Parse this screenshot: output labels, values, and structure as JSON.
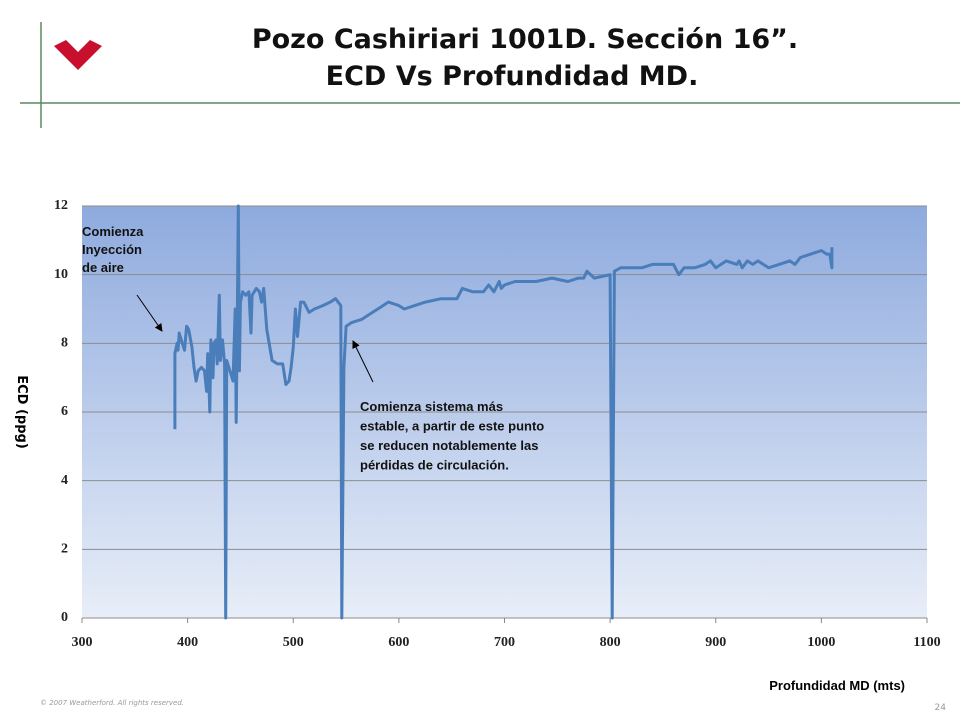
{
  "chart_data": {
    "type": "line",
    "title": [
      "Pozo Cashiriari 1001D. Sección 16”.",
      "ECD Vs Profundidad MD."
    ],
    "y_label": "ECD (ppg)",
    "x_label": "Profundidad MD (mts)",
    "annotations": [
      [
        "Comienza",
        "Inyección",
        "de aire"
      ],
      [
        "Comienza sistema más",
        "estable, a partir de este punto",
        "se reducen notablemente las",
        "pérdidas de circulación."
      ]
    ],
    "footer": "© 2007 Weatherford. All rights reserved.",
    "page_number": "24",
    "color": "#4a7ebb",
    "grid": true,
    "xlim": [
      300,
      1100
    ],
    "xticks": [
      300,
      400,
      500,
      600,
      700,
      800,
      900,
      1000,
      1100
    ],
    "ylim": [
      0,
      12
    ],
    "yticks": [
      0,
      2,
      4,
      6,
      8,
      10,
      12
    ],
    "x": [
      388,
      388,
      390,
      391,
      392,
      395,
      397,
      399,
      401,
      404,
      406,
      408,
      410,
      413,
      416,
      418,
      419,
      420,
      421,
      422,
      424,
      425,
      427,
      428,
      430,
      431,
      433,
      435,
      436,
      437,
      440,
      443,
      445,
      446,
      447,
      448,
      449,
      450,
      452,
      455,
      458,
      460,
      461,
      465,
      468,
      470,
      472,
      475,
      480,
      485,
      490,
      493,
      496,
      498,
      500,
      502,
      504,
      507,
      510,
      515,
      520,
      528,
      535,
      540,
      545,
      546,
      548,
      550,
      555,
      565,
      575,
      580,
      590,
      600,
      605,
      615,
      625,
      640,
      655,
      660,
      670,
      680,
      685,
      690,
      695,
      697,
      700,
      710,
      730,
      745,
      760,
      770,
      775,
      778,
      785,
      800,
      802,
      804,
      810,
      830,
      840,
      860,
      865,
      870,
      880,
      890,
      895,
      900,
      910,
      920,
      922,
      925,
      930,
      935,
      940,
      950,
      960,
      970,
      975,
      980,
      990,
      1000,
      1005,
      1008,
      1010,
      1010
    ],
    "values": [
      5.5,
      7.7,
      8.0,
      7.8,
      8.3,
      8.0,
      7.8,
      8.5,
      8.4,
      7.9,
      7.3,
      6.9,
      7.2,
      7.3,
      7.2,
      6.6,
      7.7,
      6.9,
      6.0,
      8.1,
      7.0,
      8.0,
      8.1,
      7.4,
      9.4,
      7.5,
      8.1,
      7.4,
      0,
      7.5,
      7.2,
      6.9,
      9.0,
      5.7,
      8.8,
      12,
      7.2,
      9.2,
      9.5,
      9.4,
      9.5,
      8.3,
      9.4,
      9.6,
      9.5,
      9.2,
      9.6,
      8.4,
      7.5,
      7.4,
      7.4,
      6.8,
      6.9,
      7.3,
      7.9,
      9.0,
      8.2,
      9.2,
      9.2,
      8.9,
      9.0,
      9.1,
      9.2,
      9.3,
      9.1,
      0,
      7.3,
      8.5,
      8.6,
      8.7,
      8.9,
      9.0,
      9.2,
      9.1,
      9.0,
      9.1,
      9.2,
      9.3,
      9.3,
      9.6,
      9.5,
      9.5,
      9.7,
      9.5,
      9.8,
      9.6,
      9.7,
      9.8,
      9.8,
      9.9,
      9.8,
      9.9,
      9.9,
      10.1,
      9.9,
      10.0,
      0,
      10.1,
      10.2,
      10.2,
      10.3,
      10.3,
      10.0,
      10.2,
      10.2,
      10.3,
      10.4,
      10.2,
      10.4,
      10.3,
      10.4,
      10.2,
      10.4,
      10.3,
      10.4,
      10.2,
      10.3,
      10.4,
      10.3,
      10.5,
      10.6,
      10.7,
      10.6,
      10.6,
      10.2,
      10.8
    ]
  }
}
